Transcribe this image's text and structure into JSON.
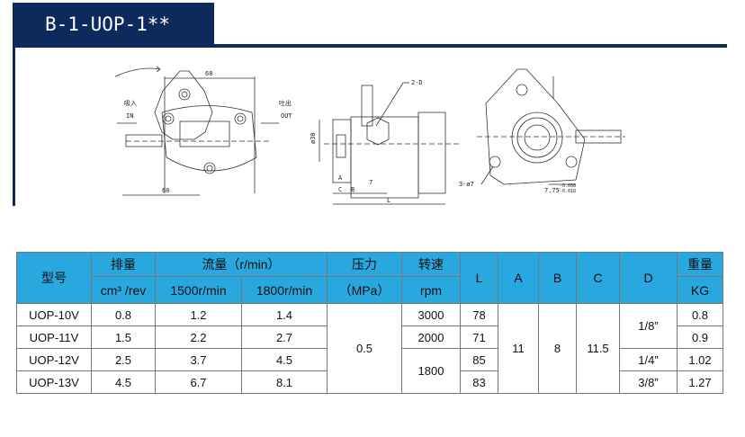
{
  "title": "B-1-UOP-1**",
  "drawing": {
    "in_cn": "吸入",
    "in": "IN",
    "out_cn": "吐出",
    "out": "OUT",
    "dim_68": "68",
    "dim_60": "60",
    "port": "2-D",
    "dia30": "ø30",
    "holes": "3-ø7",
    "key": "7.75",
    "tol_top": "-0.008",
    "tol_bot": "-0.018",
    "dim_a": "A",
    "dim_b": "B",
    "dim_c": "C",
    "dim_l": "L",
    "dim_7": "7"
  },
  "table": {
    "headers": {
      "model": "型号",
      "disp": "排量",
      "disp_unit": "cm³ /rev",
      "flow": "流量（r/min）",
      "flow1500": "1500r/min",
      "flow1800": "1800r/min",
      "pressure": "压力",
      "pressure_unit": "（MPa）",
      "speed": "转速",
      "speed_unit": "rpm",
      "L": "L",
      "A": "A",
      "B": "B",
      "C": "C",
      "D": "D",
      "weight": "重量",
      "weight_unit": "KG"
    },
    "rows": [
      {
        "model": "UOP-10V",
        "disp": "0.8",
        "f1500": "1.2",
        "f1800": "1.4",
        "L": "78",
        "weight": "0.8"
      },
      {
        "model": "UOP-11V",
        "disp": "1.5",
        "f1500": "2.2",
        "f1800": "2.7",
        "L": "71",
        "weight": "0.9"
      },
      {
        "model": "UOP-12V",
        "disp": "2.5",
        "f1500": "3.7",
        "f1800": "4.5",
        "L": "85",
        "weight": "1.02"
      },
      {
        "model": "UOP-13V",
        "disp": "4.5",
        "f1500": "6.7",
        "f1800": "8.1",
        "L": "83",
        "weight": "1.27"
      }
    ],
    "pressure": "0.5",
    "speed_3000": "3000",
    "speed_2000": "2000",
    "speed_1800": "1800",
    "A": "11",
    "B": "8",
    "C": "11.5",
    "D_18": "1/8”",
    "D_14": "1/4”",
    "D_38": "3/8”"
  }
}
